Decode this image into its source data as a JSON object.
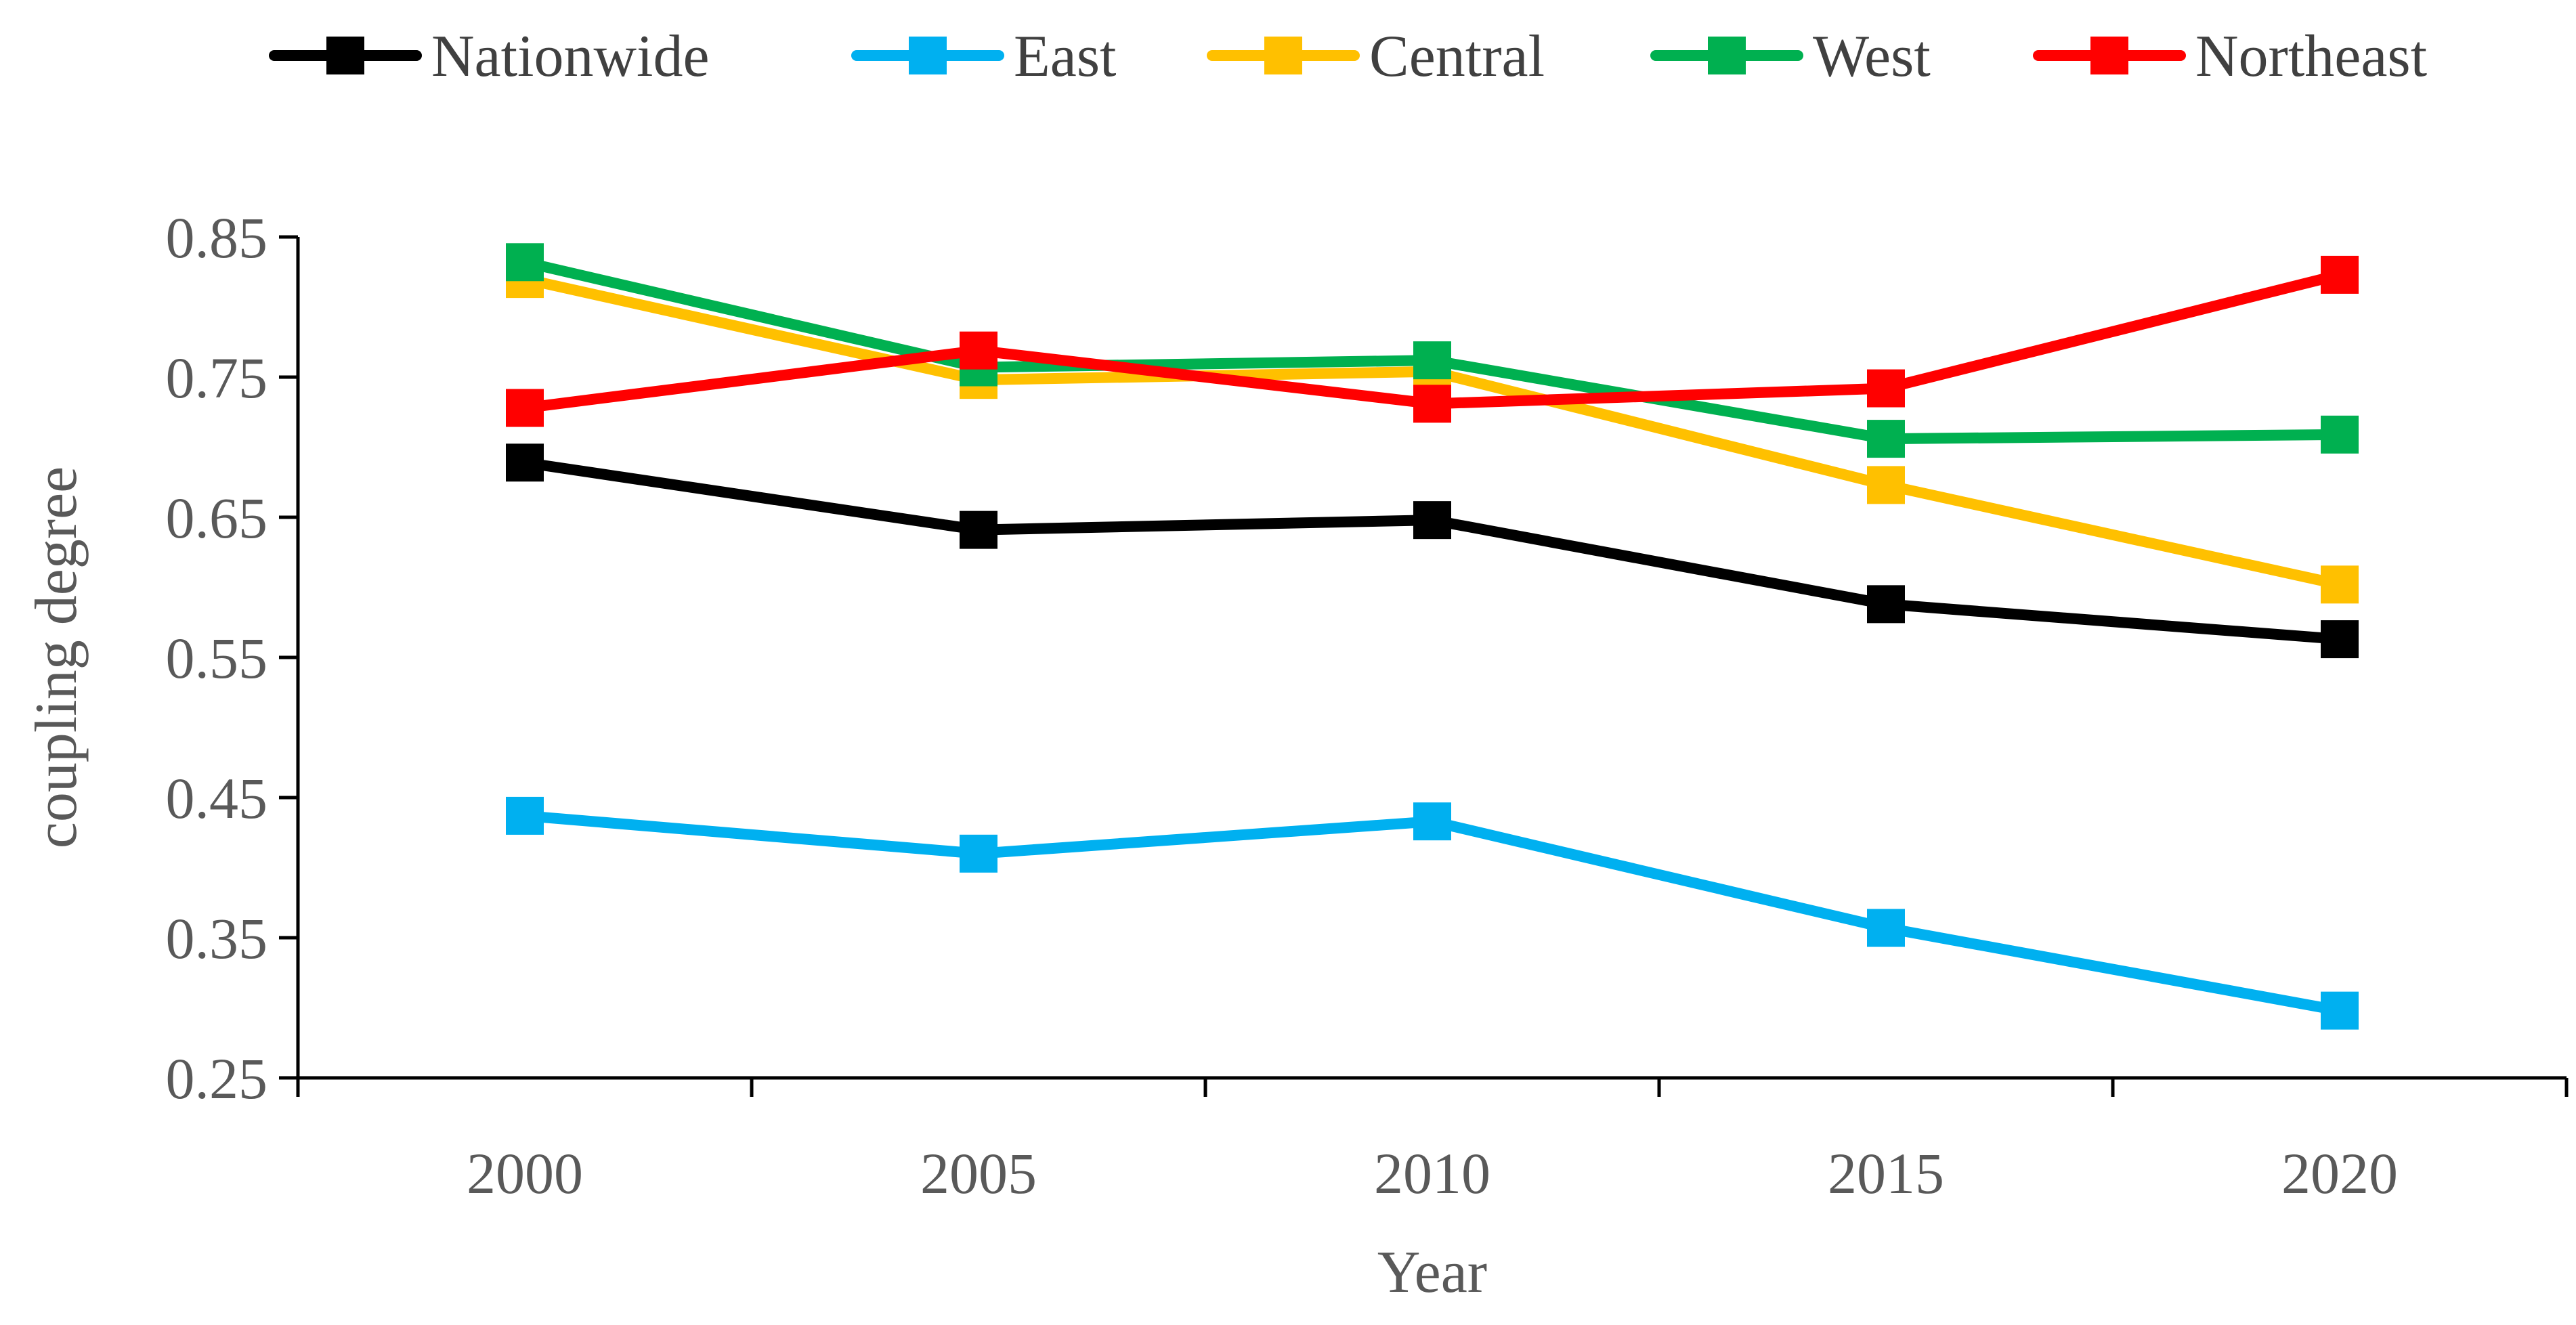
{
  "chart_data": {
    "type": "line",
    "title": "",
    "xlabel": "Year",
    "ylabel": "coupling degree",
    "categories": [
      "2000",
      "2005",
      "2010",
      "2015",
      "2020"
    ],
    "ylim": [
      0.25,
      0.85
    ],
    "yticks": [
      "0.25",
      "0.35",
      "0.45",
      "0.55",
      "0.65",
      "0.75",
      "0.85"
    ],
    "grid": false,
    "legend_position": "top",
    "marker": "square",
    "series": [
      {
        "name": "Nationwide",
        "color": "#000000",
        "values": [
          0.689,
          0.641,
          0.648,
          0.588,
          0.563
        ]
      },
      {
        "name": "East",
        "color": "#00b0f0",
        "values": [
          0.437,
          0.41,
          0.433,
          0.357,
          0.298
        ]
      },
      {
        "name": "Central",
        "color": "#ffc000",
        "values": [
          0.82,
          0.748,
          0.754,
          0.673,
          0.602
        ]
      },
      {
        "name": "West",
        "color": "#00b050",
        "values": [
          0.832,
          0.757,
          0.762,
          0.706,
          0.709
        ]
      },
      {
        "name": "Northeast",
        "color": "#ff0000",
        "values": [
          0.728,
          0.769,
          0.731,
          0.742,
          0.823
        ]
      }
    ]
  }
}
